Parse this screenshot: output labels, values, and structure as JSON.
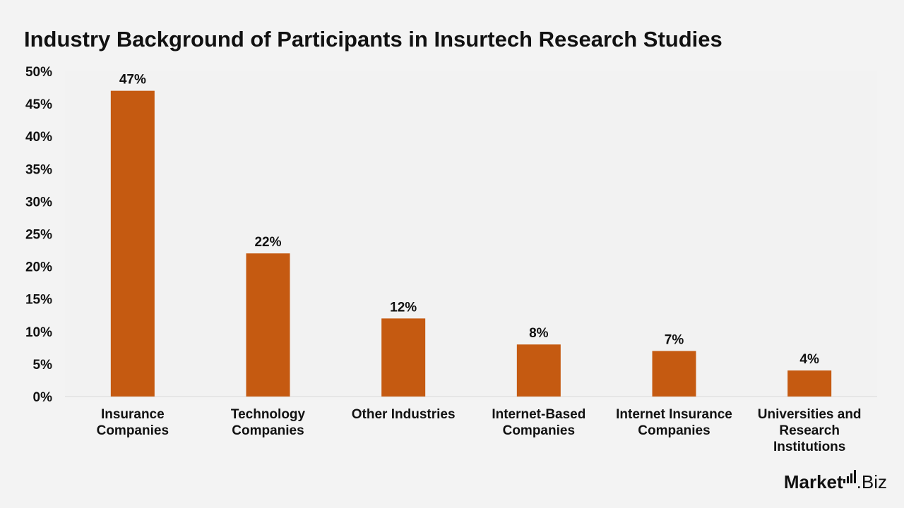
{
  "chart_data": {
    "type": "bar",
    "title": "Industry Background of Participants in Insurtech Research Studies",
    "categories": [
      [
        "Insurance",
        "Companies"
      ],
      [
        "Technology",
        "Companies"
      ],
      [
        "Other Industries"
      ],
      [
        "Internet-Based",
        "Companies"
      ],
      [
        "Internet Insurance",
        "Companies"
      ],
      [
        "Universities and",
        "Research",
        "Institutions"
      ]
    ],
    "values": [
      47,
      22,
      12,
      8,
      7,
      4
    ],
    "data_labels": [
      "47%",
      "22%",
      "12%",
      "8%",
      "7%",
      "4%"
    ],
    "y_ticks": [
      "0%",
      "5%",
      "10%",
      "15%",
      "20%",
      "25%",
      "30%",
      "35%",
      "40%",
      "45%",
      "50%"
    ],
    "ylim": [
      0,
      50
    ],
    "grid": false,
    "bar_color": "#c55a11",
    "plot_background": "#f2f2f2",
    "page_background": "#f3f3f3"
  },
  "branding": {
    "logo_text_bold": "Market",
    "logo_text_regular": ".Biz"
  }
}
